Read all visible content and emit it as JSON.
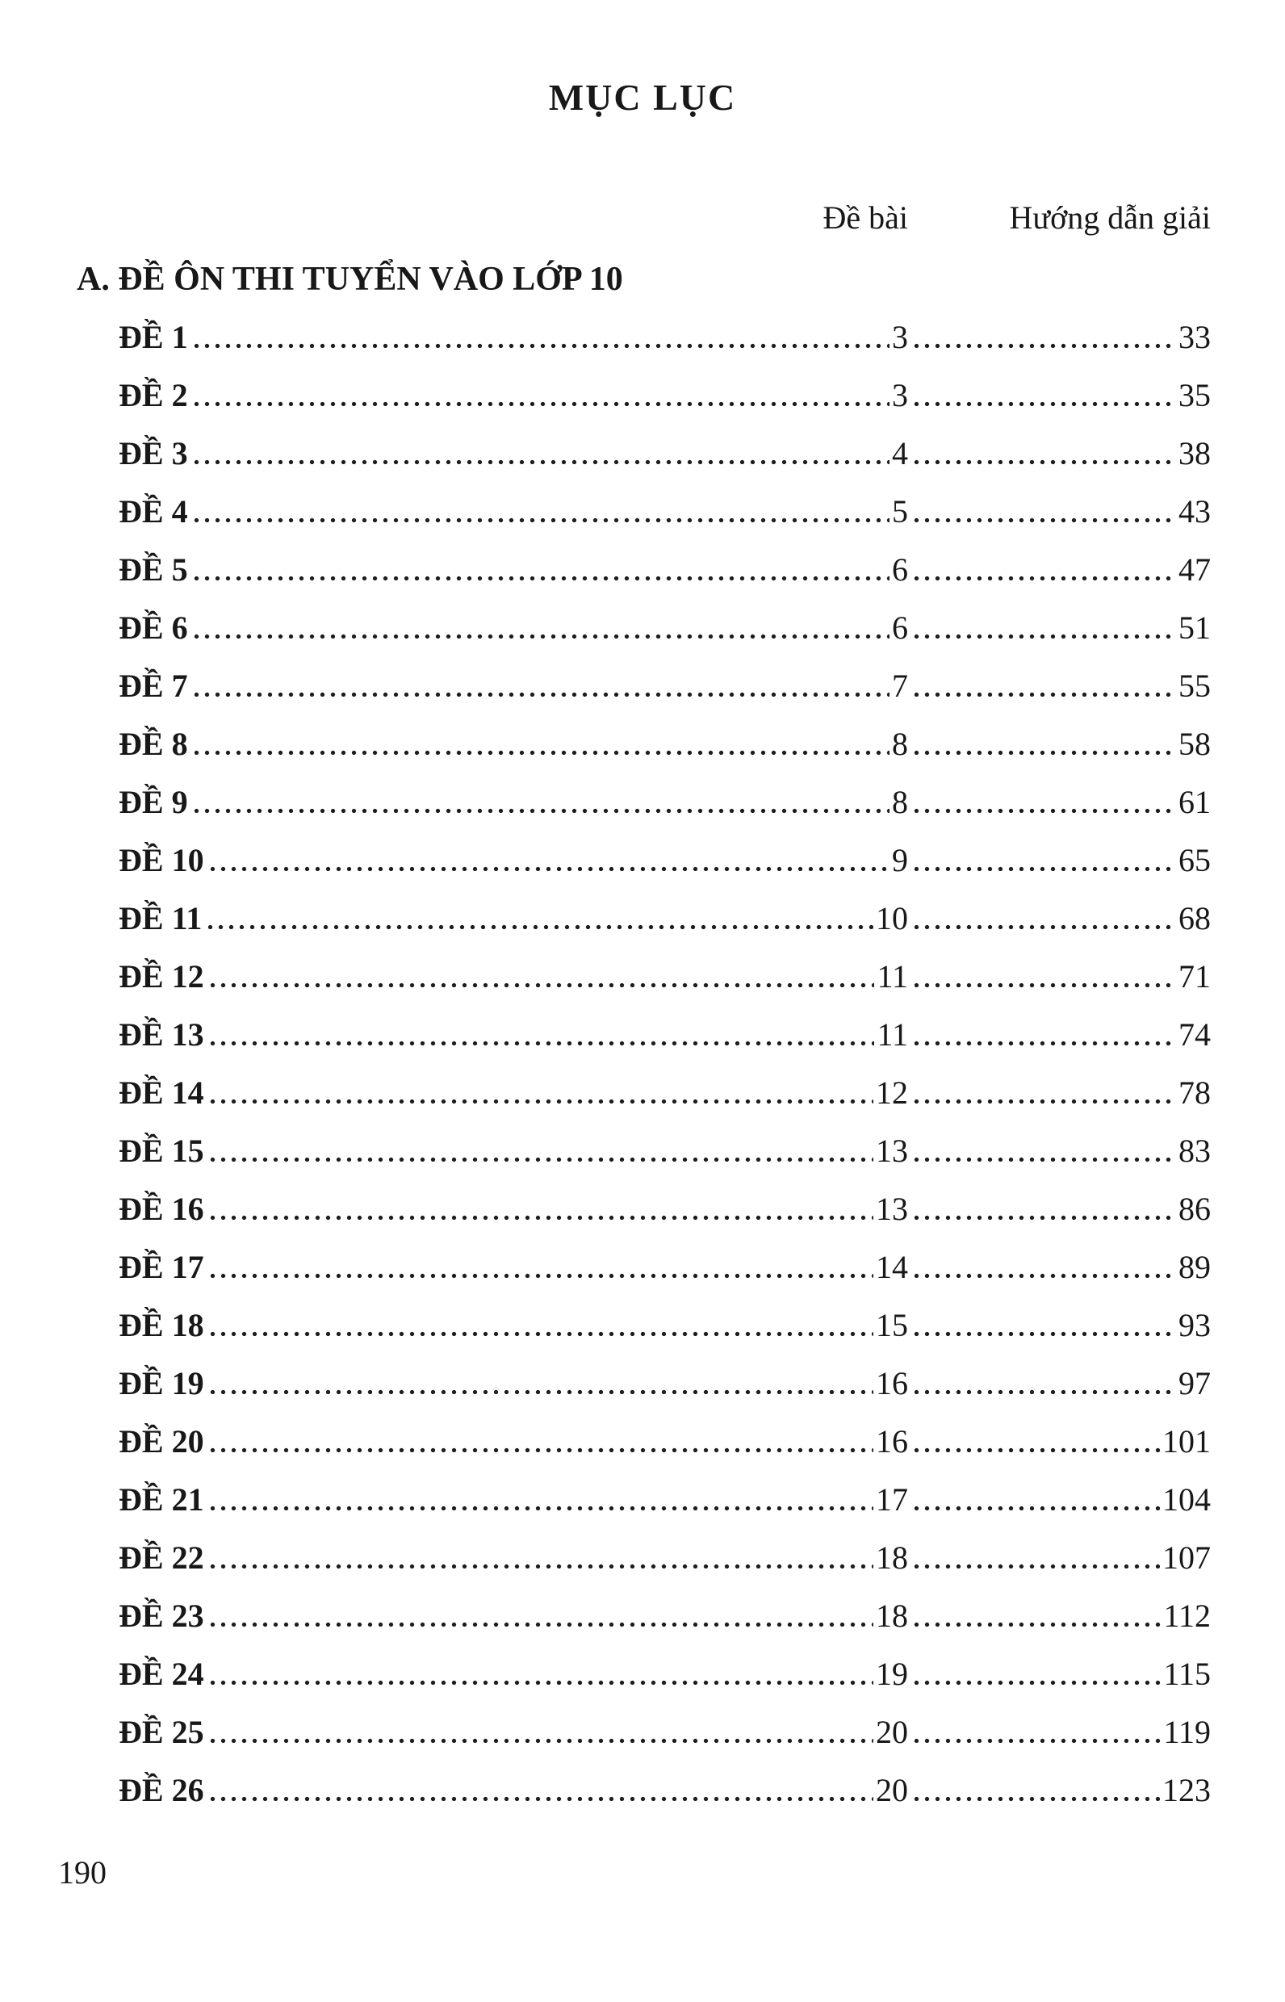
{
  "page": {
    "title": "MỤC LỤC",
    "page_number": "190"
  },
  "columns": {
    "de_bai": "Đề bài",
    "huong_dan_giai": "Hướng dẫn giải"
  },
  "section": {
    "heading": "A. ĐỀ ÔN THI TUYỂN VÀO LỚP 10"
  },
  "toc": {
    "rows": [
      {
        "label": "ĐỀ 1",
        "de_bai": "3",
        "huong_dan": "33"
      },
      {
        "label": "ĐỀ 2",
        "de_bai": "3",
        "huong_dan": "35"
      },
      {
        "label": "ĐỀ 3",
        "de_bai": "4",
        "huong_dan": "38"
      },
      {
        "label": "ĐỀ 4",
        "de_bai": "5",
        "huong_dan": "43"
      },
      {
        "label": "ĐỀ 5",
        "de_bai": "6",
        "huong_dan": "47"
      },
      {
        "label": "ĐỀ 6",
        "de_bai": "6",
        "huong_dan": "51"
      },
      {
        "label": "ĐỀ 7",
        "de_bai": "7",
        "huong_dan": "55"
      },
      {
        "label": "ĐỀ 8",
        "de_bai": "8",
        "huong_dan": "58"
      },
      {
        "label": "ĐỀ 9",
        "de_bai": "8",
        "huong_dan": "61"
      },
      {
        "label": "ĐỀ 10",
        "de_bai": "9",
        "huong_dan": "65"
      },
      {
        "label": "ĐỀ 11",
        "de_bai": "10",
        "huong_dan": "68"
      },
      {
        "label": "ĐỀ 12",
        "de_bai": "11",
        "huong_dan": "71"
      },
      {
        "label": "ĐỀ 13",
        "de_bai": "11",
        "huong_dan": "74"
      },
      {
        "label": "ĐỀ 14",
        "de_bai": "12",
        "huong_dan": "78"
      },
      {
        "label": "ĐỀ 15",
        "de_bai": "13",
        "huong_dan": "83"
      },
      {
        "label": "ĐỀ 16",
        "de_bai": "13",
        "huong_dan": "86"
      },
      {
        "label": "ĐỀ 17",
        "de_bai": "14",
        "huong_dan": "89"
      },
      {
        "label": "ĐỀ 18",
        "de_bai": "15",
        "huong_dan": "93"
      },
      {
        "label": "ĐỀ 19",
        "de_bai": "16",
        "huong_dan": "97"
      },
      {
        "label": "ĐỀ 20",
        "de_bai": "16",
        "huong_dan": "101"
      },
      {
        "label": "ĐỀ 21",
        "de_bai": "17",
        "huong_dan": "104"
      },
      {
        "label": "ĐỀ 22",
        "de_bai": "18",
        "huong_dan": "107"
      },
      {
        "label": "ĐỀ 23",
        "de_bai": "18",
        "huong_dan": "112"
      },
      {
        "label": "ĐỀ 24",
        "de_bai": "19",
        "huong_dan": "115"
      },
      {
        "label": "ĐỀ 25",
        "de_bai": "20",
        "huong_dan": "119"
      },
      {
        "label": "ĐỀ 26",
        "de_bai": "20",
        "huong_dan": "123"
      }
    ]
  },
  "colors": {
    "text": "#181818",
    "background": "#ffffff"
  }
}
